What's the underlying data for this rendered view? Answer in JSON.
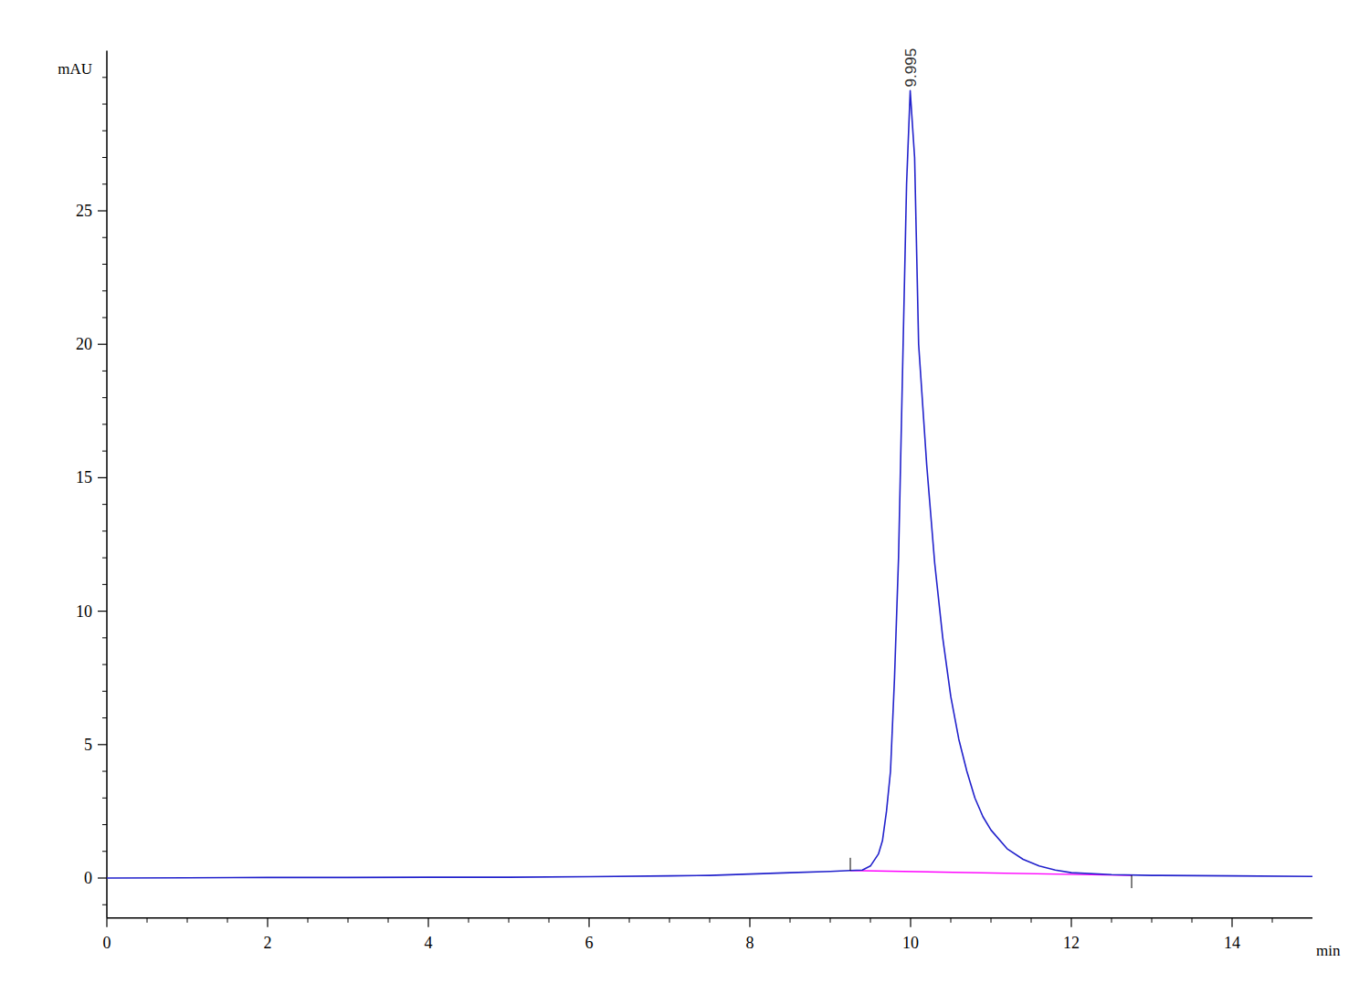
{
  "chart_data": {
    "type": "line",
    "x_label": "min",
    "y_label": "mAU",
    "xlim": [
      0,
      15
    ],
    "ylim": [
      -1.5,
      31
    ],
    "xticks": [
      0,
      2,
      4,
      6,
      8,
      10,
      12,
      14
    ],
    "yticks": [
      0,
      5,
      10,
      15,
      20,
      25
    ],
    "xminor": [
      0.5,
      1,
      1.5,
      2.5,
      3,
      3.5,
      4.5,
      5,
      5.5,
      6.5,
      7,
      7.5,
      8.5,
      9,
      9.5,
      10.5,
      11,
      11.5,
      12.5,
      13,
      13.5,
      14.5
    ],
    "yminor": [
      -1,
      1,
      2,
      3,
      4,
      6,
      7,
      8,
      9,
      11,
      12,
      13,
      14,
      16,
      17,
      18,
      19,
      21,
      22,
      23,
      24,
      26,
      27,
      28,
      29,
      30
    ],
    "grid": false,
    "series": [
      {
        "color": "#2222cc",
        "x": [
          0,
          1,
          2,
          3,
          4,
          5,
          6,
          7,
          7.5,
          8,
          8.5,
          9,
          9.25,
          9.4,
          9.5,
          9.6,
          9.65,
          9.7,
          9.75,
          9.8,
          9.85,
          9.9,
          9.95,
          9.995,
          10.05,
          10.1,
          10.2,
          10.3,
          10.4,
          10.5,
          10.6,
          10.7,
          10.8,
          10.9,
          11.0,
          11.2,
          11.4,
          11.6,
          11.8,
          12.0,
          12.5,
          13,
          14,
          15
        ],
        "values": [
          0.0,
          0.01,
          0.02,
          0.02,
          0.03,
          0.03,
          0.05,
          0.08,
          0.1,
          0.15,
          0.2,
          0.25,
          0.28,
          0.3,
          0.45,
          0.9,
          1.4,
          2.5,
          4.0,
          7.5,
          12,
          19,
          26,
          29.5,
          27,
          20,
          15.5,
          11.8,
          9.0,
          6.8,
          5.2,
          4.0,
          3.0,
          2.3,
          1.8,
          1.1,
          0.7,
          0.45,
          0.3,
          0.2,
          0.13,
          0.1,
          0.08,
          0.06
        ]
      },
      {
        "color": "#ff00ff",
        "x": [
          9.25,
          12.75
        ],
        "values": [
          0.28,
          0.1
        ]
      }
    ],
    "annotations": [
      {
        "text": "9.995",
        "x": 9.995,
        "y": 29.5
      }
    ]
  }
}
